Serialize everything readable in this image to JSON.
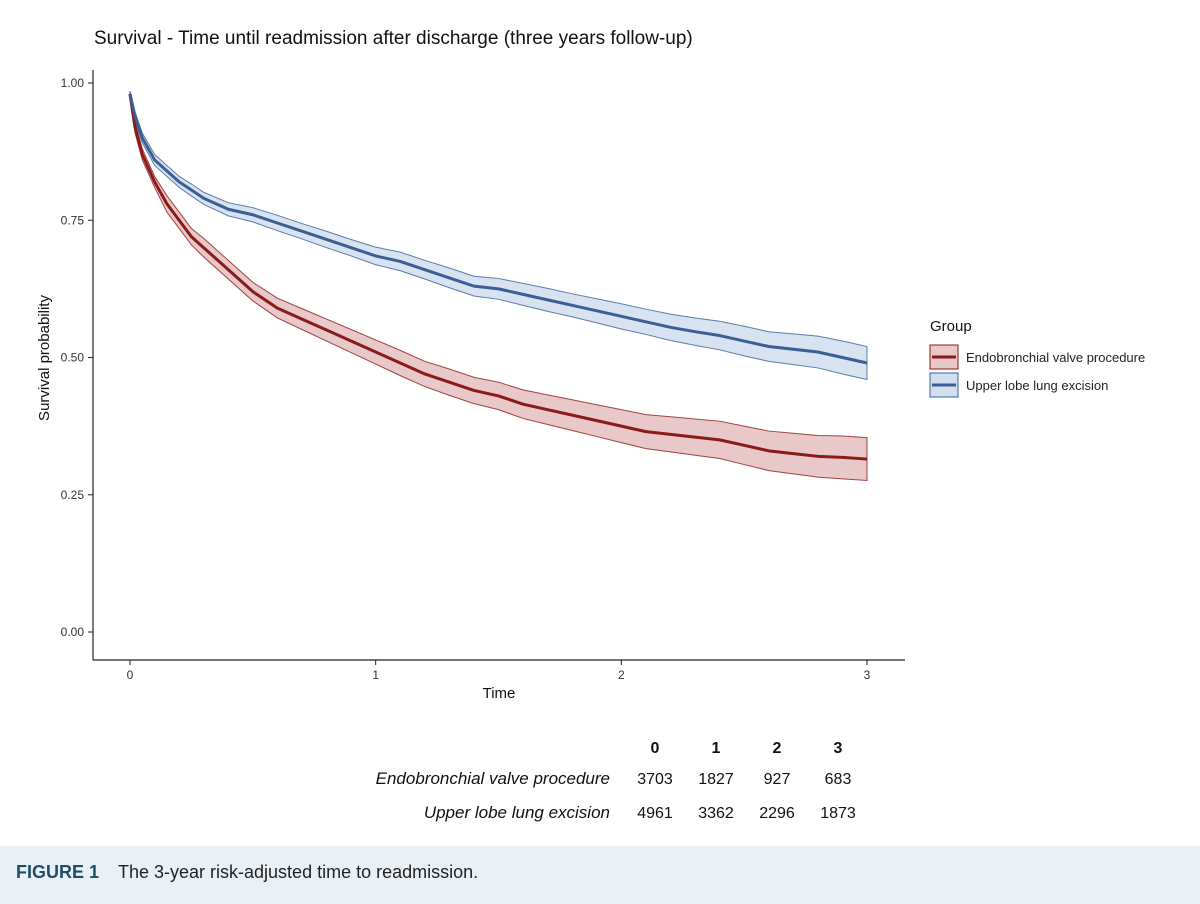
{
  "figure": {
    "caption_label": "FIGURE 1",
    "caption_text": "The 3-year risk-adjusted time to readmission."
  },
  "chart_data": {
    "type": "line",
    "title": "Survival - Time until readmission after discharge (three years follow-up)",
    "xlabel": "Time",
    "ylabel": "Survival probability",
    "xlim": [
      0,
      3
    ],
    "ylim": [
      0,
      1
    ],
    "x_ticks": [
      "0",
      "1",
      "2",
      "3"
    ],
    "y_ticks": [
      "0.00",
      "0.25",
      "0.50",
      "0.75",
      "1.00"
    ],
    "grid": false,
    "legend": {
      "title": "Group",
      "placement": "right",
      "entries": [
        "Endobronchial valve procedure",
        "Upper lobe lung excision"
      ]
    },
    "series": [
      {
        "name": "Endobronchial valve procedure",
        "color": "#8b1a1a",
        "band_color": "#d9a3a3",
        "x": [
          0,
          0.02,
          0.05,
          0.1,
          0.15,
          0.2,
          0.25,
          0.3,
          0.4,
          0.5,
          0.6,
          0.7,
          0.8,
          0.9,
          1.0,
          1.1,
          1.2,
          1.3,
          1.4,
          1.5,
          1.6,
          1.7,
          1.8,
          1.9,
          2.0,
          2.1,
          2.2,
          2.3,
          2.4,
          2.5,
          2.6,
          2.7,
          2.8,
          2.9,
          3.0
        ],
        "y": [
          0.98,
          0.92,
          0.87,
          0.82,
          0.78,
          0.75,
          0.72,
          0.7,
          0.66,
          0.62,
          0.59,
          0.57,
          0.55,
          0.53,
          0.51,
          0.49,
          0.47,
          0.455,
          0.44,
          0.43,
          0.415,
          0.405,
          0.395,
          0.385,
          0.375,
          0.365,
          0.36,
          0.355,
          0.35,
          0.34,
          0.33,
          0.325,
          0.32,
          0.318,
          0.315
        ],
        "lower": [
          0.975,
          0.91,
          0.86,
          0.81,
          0.765,
          0.735,
          0.705,
          0.683,
          0.643,
          0.603,
          0.572,
          0.551,
          0.53,
          0.509,
          0.488,
          0.467,
          0.447,
          0.431,
          0.416,
          0.405,
          0.389,
          0.378,
          0.367,
          0.356,
          0.345,
          0.334,
          0.328,
          0.322,
          0.316,
          0.305,
          0.294,
          0.288,
          0.282,
          0.279,
          0.276
        ],
        "upper": [
          0.985,
          0.93,
          0.88,
          0.83,
          0.795,
          0.765,
          0.735,
          0.717,
          0.677,
          0.637,
          0.608,
          0.589,
          0.57,
          0.551,
          0.532,
          0.513,
          0.493,
          0.479,
          0.464,
          0.455,
          0.441,
          0.432,
          0.423,
          0.414,
          0.405,
          0.396,
          0.392,
          0.388,
          0.384,
          0.375,
          0.366,
          0.362,
          0.358,
          0.357,
          0.354
        ]
      },
      {
        "name": "Upper lobe lung excision",
        "color": "#3b5f94",
        "band_color": "#bdd0e8",
        "x": [
          0,
          0.02,
          0.05,
          0.1,
          0.15,
          0.2,
          0.25,
          0.3,
          0.4,
          0.5,
          0.6,
          0.7,
          0.8,
          0.9,
          1.0,
          1.1,
          1.2,
          1.3,
          1.4,
          1.5,
          1.6,
          1.7,
          1.8,
          1.9,
          2.0,
          2.1,
          2.2,
          2.3,
          2.4,
          2.5,
          2.6,
          2.7,
          2.8,
          2.9,
          3.0
        ],
        "y": [
          0.98,
          0.94,
          0.9,
          0.86,
          0.84,
          0.82,
          0.805,
          0.79,
          0.77,
          0.76,
          0.745,
          0.73,
          0.715,
          0.7,
          0.685,
          0.675,
          0.66,
          0.645,
          0.63,
          0.625,
          0.615,
          0.605,
          0.595,
          0.585,
          0.575,
          0.565,
          0.555,
          0.547,
          0.54,
          0.53,
          0.52,
          0.515,
          0.51,
          0.5,
          0.49
        ],
        "lower": [
          0.975,
          0.932,
          0.891,
          0.85,
          0.83,
          0.81,
          0.794,
          0.779,
          0.758,
          0.747,
          0.731,
          0.716,
          0.7,
          0.685,
          0.669,
          0.658,
          0.643,
          0.627,
          0.612,
          0.606,
          0.595,
          0.584,
          0.574,
          0.563,
          0.552,
          0.542,
          0.531,
          0.522,
          0.514,
          0.503,
          0.493,
          0.487,
          0.481,
          0.47,
          0.46
        ],
        "upper": [
          0.985,
          0.948,
          0.909,
          0.87,
          0.85,
          0.83,
          0.816,
          0.801,
          0.782,
          0.773,
          0.759,
          0.744,
          0.73,
          0.715,
          0.701,
          0.692,
          0.677,
          0.663,
          0.648,
          0.644,
          0.635,
          0.626,
          0.616,
          0.607,
          0.598,
          0.588,
          0.579,
          0.572,
          0.566,
          0.557,
          0.547,
          0.543,
          0.539,
          0.53,
          0.52
        ]
      }
    ],
    "risk_table": {
      "headers": [
        "0",
        "1",
        "2",
        "3"
      ],
      "rows": [
        {
          "name": "Endobronchial valve procedure",
          "values": [
            "3703",
            "1827",
            "927",
            "683"
          ]
        },
        {
          "name": "Upper lobe lung excision",
          "values": [
            "4961",
            "3362",
            "2296",
            "1873"
          ]
        }
      ]
    }
  }
}
